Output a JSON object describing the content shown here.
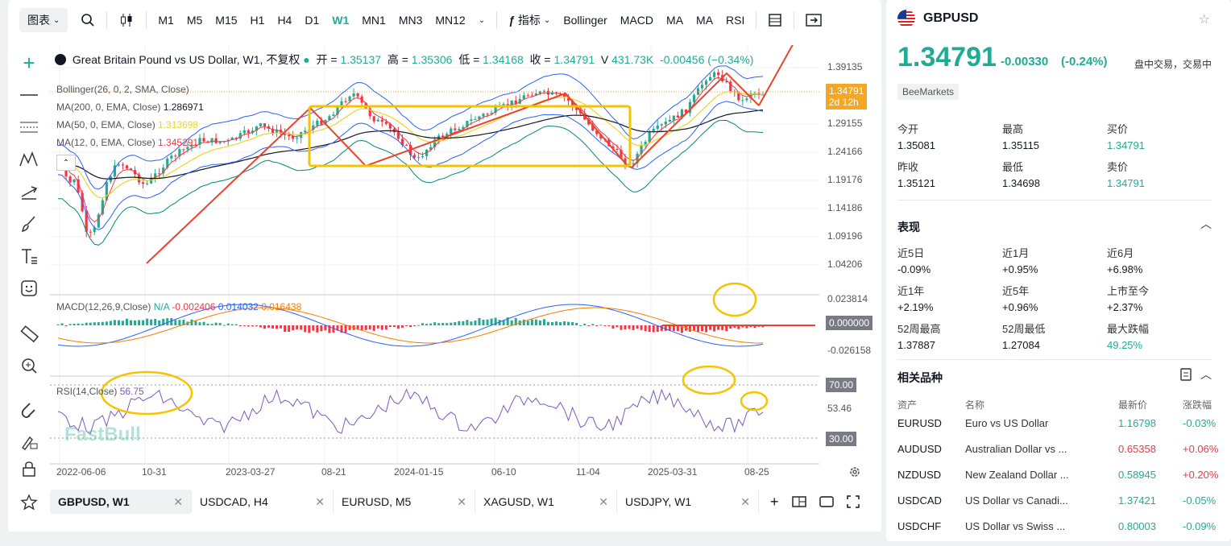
{
  "toolbar": {
    "chart_label": "图表",
    "timeframes": [
      "M1",
      "M5",
      "M15",
      "H1",
      "H4",
      "D1",
      "W1",
      "MN1",
      "MN3",
      "MN12"
    ],
    "active_timeframe": "W1",
    "indicators_label": "指标",
    "indicator_buttons": [
      "Bollinger",
      "MACD",
      "MA",
      "MA",
      "RSI"
    ]
  },
  "legend": {
    "title": "Great Britain Pound vs US Dollar, W1, 不复权",
    "open_label": "开 =",
    "open": "1.35137",
    "high_label": "高 =",
    "high": "1.35306",
    "low_label": "低 =",
    "low": "1.34168",
    "close_label": "收 =",
    "close": "1.34791",
    "vol_label": "V",
    "vol": "431.73K",
    "change": "-0.00456 (−0.34%)",
    "bollinger": "Bollinger(26, 0, 2, SMA, Close)",
    "ma200": "MA(200, 0, EMA, Close)",
    "ma200_val": "1.286971",
    "ma50": "MA(50, 0, EMA, Close)",
    "ma50_val": "1.313698",
    "ma12": "MA(12, 0, EMA, Close)",
    "ma12_val": "1.345291",
    "macd": "MACD(12,26,9,Close)",
    "macd_na": "N/A",
    "macd_v1": "-0.002406",
    "macd_v2": "0.014032",
    "macd_v3": "0.016438",
    "rsi": "RSI(14,Close)",
    "rsi_val": "56.75"
  },
  "price_axis": {
    "ticks": [
      "1.39135",
      "1.29155",
      "1.24166",
      "1.19176",
      "1.14186",
      "1.09196",
      "1.04206"
    ],
    "last_price": "1.34791",
    "countdown": "2d 12h",
    "macd_ticks": [
      "0.023814",
      "-0.026158"
    ],
    "macd_zero": "0.000000",
    "rsi_ticks": [
      "70.00",
      "53.46",
      "30.00"
    ]
  },
  "x_axis": [
    "2022-06-06",
    "10-31",
    "2023-03-27",
    "08-21",
    "2024-01-15",
    "06-10",
    "11-04",
    "2025-03-31",
    "08-25"
  ],
  "watermark": "FastBull",
  "bottom_tabs": [
    {
      "label": "GBPUSD, W1",
      "active": true
    },
    {
      "label": "USDCAD, H4",
      "active": false
    },
    {
      "label": "EURUSD, M5",
      "active": false
    },
    {
      "label": "XAGUSD, W1",
      "active": false
    },
    {
      "label": "USDJPY, W1",
      "active": false
    }
  ],
  "symbol": {
    "name": "GBPUSD",
    "price": "1.34791",
    "change": "-0.00330",
    "change_pct": "(-0.24%)",
    "status": "盘中交易，交易中",
    "broker": "BeeMarkets"
  },
  "quote": [
    {
      "k": "今开",
      "v": "1.35081",
      "color": ""
    },
    {
      "k": "最高",
      "v": "1.35115",
      "color": ""
    },
    {
      "k": "买价",
      "v": "1.34791",
      "color": "green"
    },
    {
      "k": "昨收",
      "v": "1.35121",
      "color": ""
    },
    {
      "k": "最低",
      "v": "1.34698",
      "color": ""
    },
    {
      "k": "卖价",
      "v": "1.34791",
      "color": "green"
    }
  ],
  "performance_title": "表现",
  "performance": [
    {
      "k": "近5日",
      "v": "-0.09%",
      "color": ""
    },
    {
      "k": "近1月",
      "v": "+0.95%",
      "color": ""
    },
    {
      "k": "近6月",
      "v": "+6.98%",
      "color": ""
    },
    {
      "k": "近1年",
      "v": "+2.19%",
      "color": ""
    },
    {
      "k": "近5年",
      "v": "+0.96%",
      "color": ""
    },
    {
      "k": "上市至今",
      "v": "+2.37%",
      "color": ""
    },
    {
      "k": "52周最高",
      "v": "1.37887",
      "color": ""
    },
    {
      "k": "52周最低",
      "v": "1.27084",
      "color": ""
    },
    {
      "k": "最大跌幅",
      "v": "49.25%",
      "color": "green"
    }
  ],
  "related_title": "相关品种",
  "related_headers": {
    "asset": "资产",
    "name": "名称",
    "price": "最新价",
    "change": "涨跌幅"
  },
  "related": [
    {
      "asset": "EURUSD",
      "name": "Euro vs US Dollar",
      "price": "1.16798",
      "change": "-0.03%",
      "pc": "green",
      "cc": "green"
    },
    {
      "asset": "AUDUSD",
      "name": "Australian Dollar vs ...",
      "price": "0.65358",
      "change": "+0.06%",
      "pc": "red",
      "cc": "red"
    },
    {
      "asset": "NZDUSD",
      "name": "New Zealand Dollar ...",
      "price": "0.58945",
      "change": "+0.20%",
      "pc": "green",
      "cc": "red"
    },
    {
      "asset": "USDCAD",
      "name": "US Dollar vs Canadi...",
      "price": "1.37421",
      "change": "-0.05%",
      "pc": "green",
      "cc": "green"
    },
    {
      "asset": "USDCHF",
      "name": "US Dollar vs Swiss ...",
      "price": "0.80003",
      "change": "-0.09%",
      "pc": "green",
      "cc": "green"
    }
  ],
  "colors": {
    "up": "#22ab94",
    "down": "#f23645",
    "accent": "#f5a623",
    "annotation": "#e8442e",
    "box": "#f5c400"
  }
}
